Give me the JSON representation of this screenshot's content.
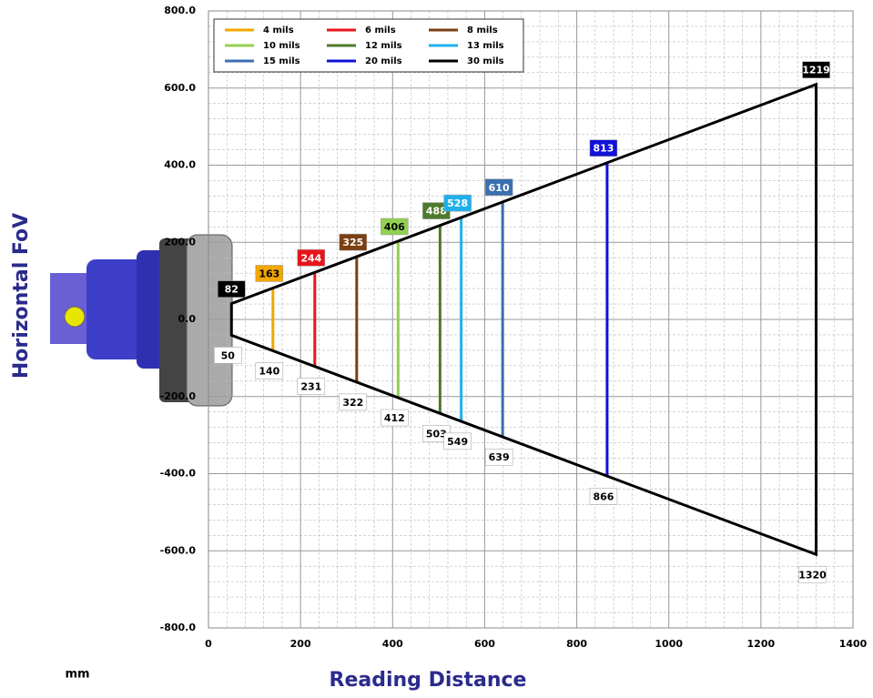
{
  "chart_data": {
    "type": "fov",
    "y_title": "Horizontal FoV",
    "x_title": "Reading Distance",
    "unit": "mm",
    "xlim": [
      0,
      1400
    ],
    "xticks": [
      0,
      200,
      400,
      600,
      800,
      1000,
      1200,
      1400
    ],
    "ylim": [
      -800,
      800
    ],
    "yticks": [
      {
        "value": -800,
        "label": "-800.0"
      },
      {
        "value": -600,
        "label": "-600.0"
      },
      {
        "value": -400,
        "label": "-400.0"
      },
      {
        "value": -200,
        "label": "-200.0"
      },
      {
        "value": 0,
        "label": "0.0"
      },
      {
        "value": 200,
        "label": "200.0"
      },
      {
        "value": 400,
        "label": "400.0"
      },
      {
        "value": 600,
        "label": "600.0"
      },
      {
        "value": 800,
        "label": "800.0"
      }
    ],
    "grid": true,
    "series": [
      {
        "name": "4 mils",
        "color": "#f2a600",
        "x": [
          140
        ],
        "values": [
          163
        ]
      },
      {
        "name": "6 mils",
        "color": "#e8141b",
        "x": [
          231
        ],
        "values": [
          244
        ]
      },
      {
        "name": "8 mils",
        "color": "#7b3f12",
        "x": [
          322
        ],
        "values": [
          325
        ]
      },
      {
        "name": "10 mils",
        "color": "#92d050",
        "x": [
          412
        ],
        "values": [
          406
        ]
      },
      {
        "name": "12 mils",
        "color": "#4e7a2c",
        "x": [
          503
        ],
        "values": [
          488
        ]
      },
      {
        "name": "13 mils",
        "color": "#1fb0ec",
        "x": [
          549
        ],
        "values": [
          528
        ]
      },
      {
        "name": "15 mils",
        "color": "#3a6fb0",
        "x": [
          639
        ],
        "values": [
          610
        ]
      },
      {
        "name": "20 mils",
        "color": "#1010d8",
        "x": [
          866
        ],
        "values": [
          813
        ]
      },
      {
        "name": "30 mils",
        "color": "#000000",
        "x": [
          50,
          1320
        ],
        "values": [
          82,
          1219
        ]
      }
    ]
  }
}
